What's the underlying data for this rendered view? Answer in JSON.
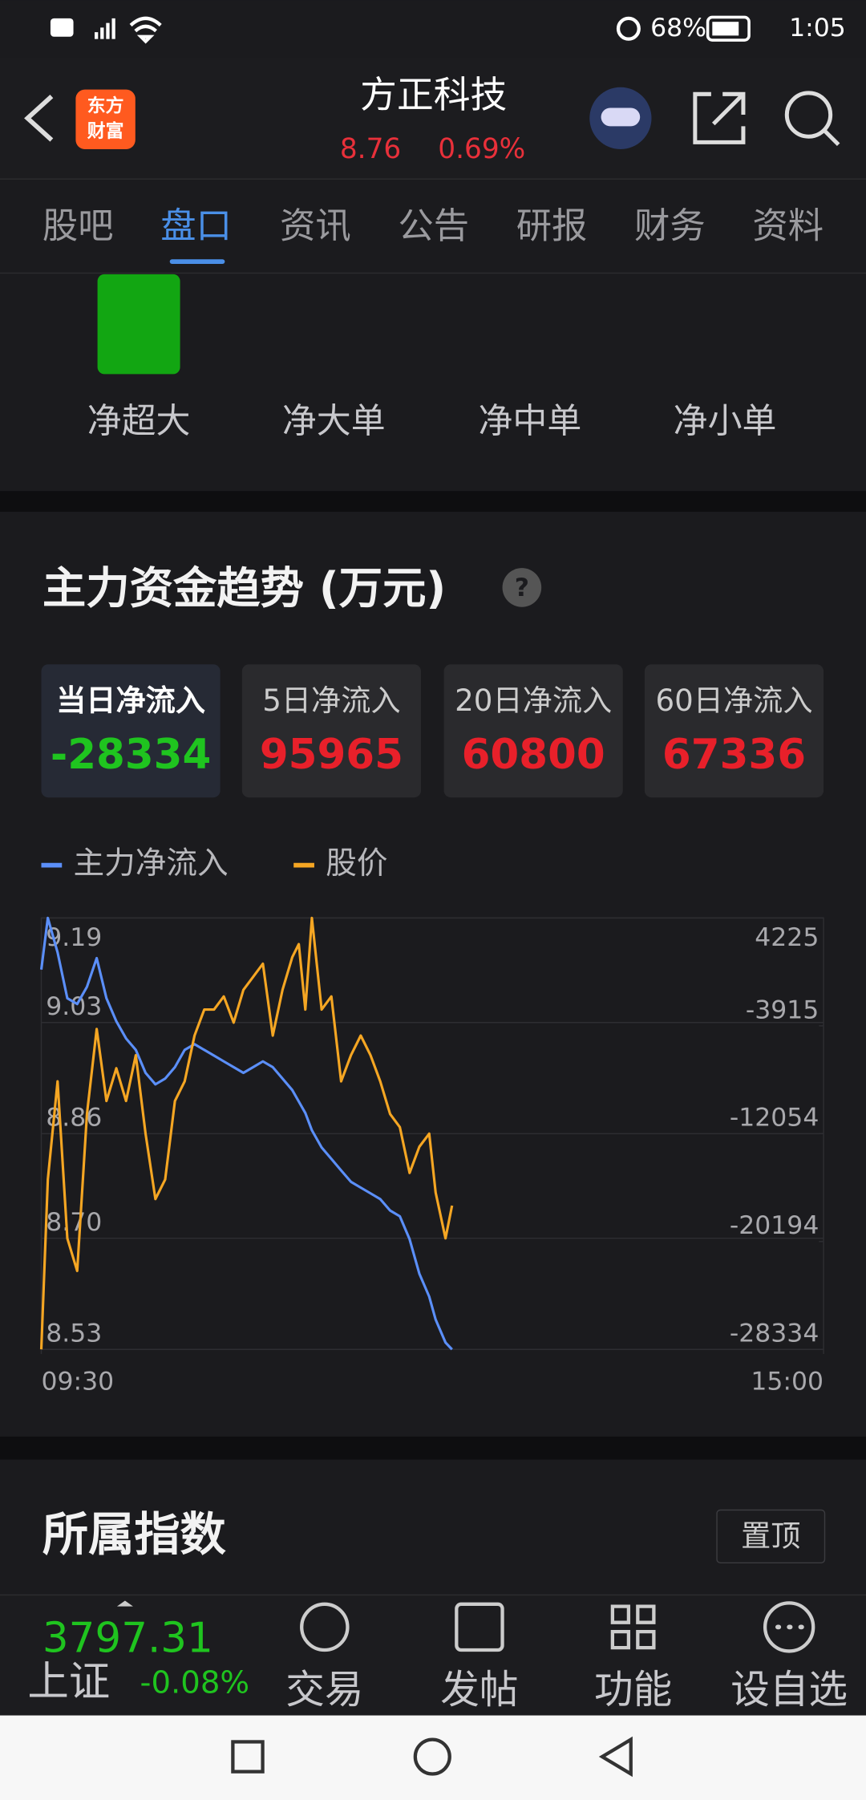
{
  "status_bar": {
    "battery": "68%",
    "time": "1:05"
  },
  "header": {
    "logo": [
      "东方",
      "财富"
    ],
    "title": "方正科技",
    "price": "8.76",
    "change": "0.69%"
  },
  "tabs": [
    "股吧",
    "盘口",
    "资讯",
    "公告",
    "研报",
    "财务",
    "资料"
  ],
  "fund_flow": {
    "labels": [
      "净超大",
      "净大单",
      "净中单",
      "净小单"
    ]
  },
  "trend": {
    "title": "主力资金趋势 (万元)",
    "help": "?",
    "periods": [
      {
        "label": "当日净流入",
        "value": "-28334"
      },
      {
        "label": "5日净流入",
        "value": "95965"
      },
      {
        "label": "20日净流入",
        "value": "60800"
      },
      {
        "label": "60日净流入",
        "value": "67336"
      }
    ]
  },
  "chart_data": {
    "type": "line",
    "x": [
      0,
      2,
      5,
      8,
      11,
      14,
      17,
      20,
      23,
      26,
      29,
      32,
      35,
      38,
      41,
      44,
      47,
      50,
      53,
      56,
      59,
      62,
      65,
      68,
      71,
      74,
      77,
      79,
      81,
      83,
      86,
      89,
      92,
      95,
      98,
      101,
      104,
      107,
      110,
      113,
      116,
      119,
      121,
      124,
      126
    ],
    "xlim": [
      0,
      240
    ],
    "xticks": [
      {
        "value": 0,
        "label": "09:30"
      },
      {
        "value": 240,
        "label": "15:00"
      }
    ],
    "ylim": [
      8.53,
      9.19
    ],
    "yticks": [
      8.53,
      {
        "value": 8.7,
        "label": "8.70"
      },
      8.86,
      9.03,
      9.19
    ],
    "y2lim": [
      -28334,
      4225
    ],
    "y2ticks": [
      -28334,
      -20194,
      -12054,
      -3915,
      4225
    ],
    "grid": true,
    "series": [
      {
        "name": "主力净流入",
        "color": "#5b8ff9",
        "axis": "y2",
        "values": [
          331,
          4225,
          1630,
          -1834,
          -2267,
          -968,
          1197,
          -1834,
          -3566,
          -4865,
          -5731,
          -7463,
          -8329,
          -7896,
          -7030,
          -5731,
          -5298,
          -5731,
          -6164,
          -6597,
          -7030,
          -7463,
          -7030,
          -6597,
          -7030,
          -7896,
          -8762,
          -9628,
          -10494,
          -11793,
          -13092,
          -13958,
          -14824,
          -15690,
          -16123,
          -16556,
          -16989,
          -17855,
          -18288,
          -20020,
          -22618,
          -24350,
          -26082,
          -27814,
          -28334
        ]
      },
      {
        "name": "股价",
        "color": "#f5a623",
        "values": [
          8.53,
          8.79,
          8.94,
          8.7,
          8.65,
          8.89,
          9.02,
          8.91,
          8.96,
          8.91,
          8.98,
          8.86,
          8.76,
          8.79,
          8.91,
          8.94,
          9.01,
          9.05,
          9.05,
          9.07,
          9.03,
          9.08,
          9.1,
          9.12,
          9.01,
          9.08,
          9.13,
          9.15,
          9.05,
          9.19,
          9.05,
          9.07,
          8.94,
          8.98,
          9.01,
          8.98,
          8.94,
          8.89,
          8.87,
          8.8,
          8.84,
          8.86,
          8.77,
          8.7,
          8.75
        ]
      }
    ]
  },
  "index_section": {
    "title": "所属指数",
    "pin": "置顶"
  },
  "bottom_bar": {
    "index_value": "3797.31",
    "index_name": "上证",
    "index_change": "-0.08%",
    "buttons": [
      "交易",
      "发帖",
      "功能",
      "设自选"
    ]
  }
}
